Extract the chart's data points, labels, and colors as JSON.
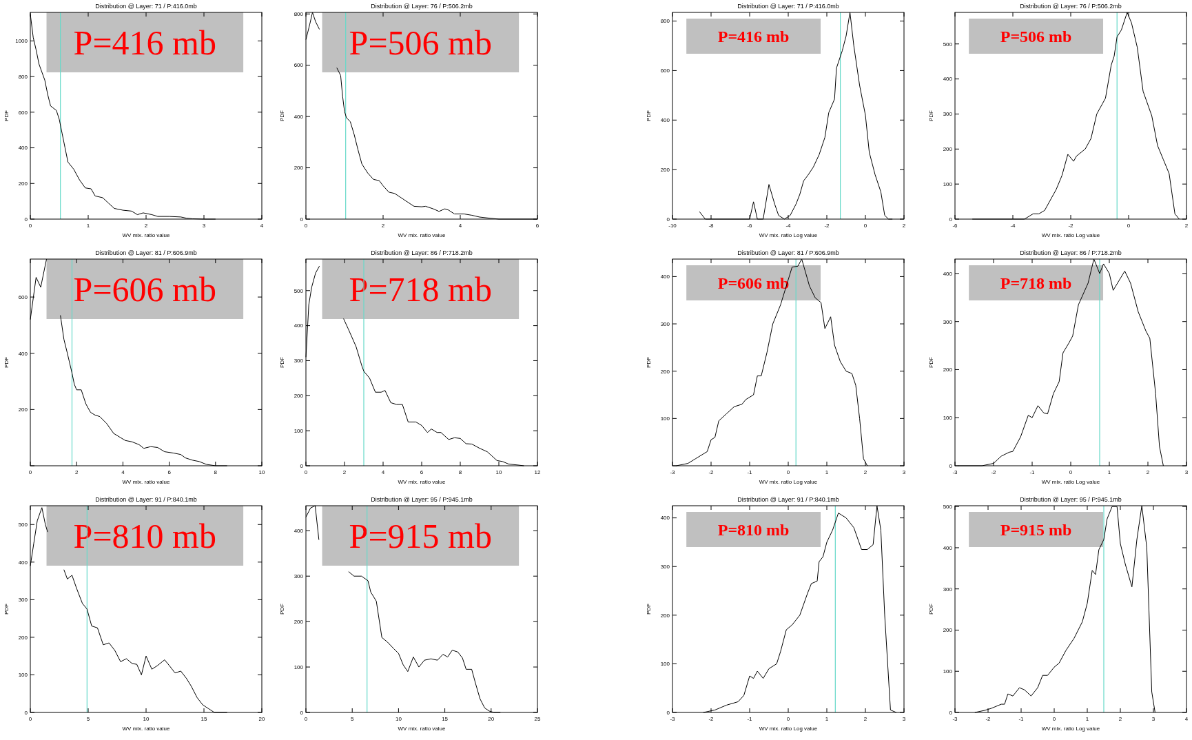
{
  "chart_data": [
    {
      "type": "line",
      "title": "Distribution @ Layer: 71 / P:416.0mb",
      "xlabel": "WV mix. ratio value",
      "ylabel": "PDF",
      "annotations": [
        "P=416 mb"
      ],
      "color": "#000000",
      "xlim": [
        0,
        4
      ],
      "xticks": [
        0,
        1,
        2,
        3,
        4
      ],
      "ylim": [
        0,
        1160
      ],
      "yticks": [
        0,
        200,
        400,
        600,
        800,
        1000
      ],
      "ref_lines": [
        {
          "axis": "x",
          "value": 0.52,
          "color": "#66d9c9"
        }
      ],
      "x": [
        0,
        0.05,
        0.1,
        0.15,
        0.25,
        0.3,
        0.35,
        0.45,
        0.5,
        0.55,
        0.6,
        0.65,
        0.75,
        0.85,
        0.95,
        1.05,
        1.12,
        1.25,
        1.35,
        1.45,
        1.6,
        1.75,
        1.85,
        1.95,
        2.1,
        2.2,
        2.4,
        2.6,
        2.7,
        2.8,
        3.0,
        3.2
      ],
      "values": [
        1150,
        1020,
        950,
        870,
        780,
        700,
        635,
        610,
        560,
        480,
        400,
        320,
        280,
        220,
        175,
        170,
        130,
        120,
        90,
        60,
        50,
        45,
        25,
        35,
        25,
        15,
        15,
        12,
        5,
        2,
        0,
        0
      ]
    },
    {
      "type": "line",
      "title": "Distribution @ Layer: 76 / P:506.2mb",
      "xlabel": "WV mix. ratio value",
      "ylabel": "PDF",
      "annotations": [
        "P=506 mb"
      ],
      "color": "#000000",
      "xlim": [
        0,
        6
      ],
      "xticks": [
        0,
        2,
        4,
        6
      ],
      "ylim": [
        0,
        806
      ],
      "yticks": [
        0,
        200,
        400,
        600,
        800
      ],
      "ref_lines": [
        {
          "axis": "x",
          "value": 1.03,
          "color": "#66d9c9"
        }
      ],
      "x": [
        0,
        0.1,
        0.17,
        0.25,
        0.35,
        0.55,
        0.8,
        0.9,
        0.95,
        1.0,
        1.05,
        1.15,
        1.25,
        1.35,
        1.45,
        1.6,
        1.75,
        1.9,
        2.0,
        2.15,
        2.3,
        2.45,
        2.6,
        2.8,
        3.0,
        3.1,
        3.3,
        3.45,
        3.6,
        3.7,
        3.85,
        4.1,
        4.3,
        4.5,
        4.8,
        5.0,
        5.5,
        6.0
      ],
      "values": [
        700,
        760,
        806,
        770,
        740,
        null,
        590,
        560,
        480,
        420,
        395,
        380,
        330,
        270,
        215,
        180,
        155,
        150,
        130,
        105,
        100,
        85,
        70,
        50,
        48,
        50,
        40,
        30,
        40,
        35,
        20,
        20,
        15,
        8,
        3,
        0,
        0,
        0
      ]
    },
    {
      "type": "line",
      "title": "Distribution @ Layer: 71 / P:416.0mb",
      "xlabel": "WV mix. ratio Log value",
      "ylabel": "PDF",
      "annotations": [
        "P=416 mb"
      ],
      "color": "#000000",
      "xlim": [
        -10,
        2
      ],
      "xticks": [
        -10,
        -8,
        -6,
        -4,
        -2,
        0,
        2
      ],
      "ylim": [
        0,
        835
      ],
      "yticks": [
        0,
        200,
        400,
        600,
        800
      ],
      "ref_lines": [
        {
          "axis": "x",
          "value": -1.3,
          "color": "#66d9c9"
        }
      ],
      "x": [
        -8.6,
        -8.3,
        -6,
        -5.8,
        -5.6,
        -5.3,
        -5.0,
        -4.7,
        -4.5,
        -4.2,
        -3.9,
        -3.6,
        -3.4,
        -3.2,
        -3.0,
        -2.7,
        -2.4,
        -2.1,
        -1.9,
        -1.6,
        -1.5,
        -1.2,
        -1.0,
        -0.8,
        -0.6,
        -0.3,
        0,
        0.2,
        0.5,
        0.8,
        1.0,
        1.2,
        1.4
      ],
      "values": [
        30,
        0,
        0,
        70,
        0,
        0,
        140,
        60,
        15,
        0,
        15,
        60,
        100,
        155,
        175,
        210,
        260,
        330,
        430,
        485,
        610,
        680,
        740,
        835,
        700,
        540,
        420,
        270,
        180,
        110,
        15,
        0,
        0
      ]
    },
    {
      "type": "line",
      "title": "Distribution @ Layer: 76 / P:506.2mb",
      "xlabel": "WV mix. ratio Log value",
      "ylabel": "PDF",
      "annotations": [
        "P=506 mb"
      ],
      "color": "#000000",
      "xlim": [
        -6,
        2
      ],
      "xticks": [
        -6,
        -4,
        -2,
        0,
        2
      ],
      "ylim": [
        0,
        590
      ],
      "yticks": [
        0,
        100,
        200,
        300,
        400,
        500
      ],
      "ref_lines": [
        {
          "axis": "x",
          "value": -0.4,
          "color": "#66d9c9"
        }
      ],
      "x": [
        -5.4,
        -3.6,
        -3.5,
        -3.3,
        -3.1,
        -2.9,
        -2.7,
        -2.5,
        -2.3,
        -2.1,
        -1.9,
        -1.8,
        -1.5,
        -1.3,
        -1.1,
        -0.9,
        -0.8,
        -0.6,
        -0.5,
        -0.4,
        -0.25,
        -0.05,
        0.1,
        0.3,
        0.5,
        0.8,
        1.0,
        1.2,
        1.4,
        1.6,
        1.75
      ],
      "values": [
        0,
        0,
        5,
        15,
        15,
        25,
        55,
        85,
        125,
        185,
        165,
        180,
        200,
        230,
        300,
        330,
        345,
        440,
        465,
        520,
        540,
        590,
        560,
        490,
        365,
        295,
        210,
        170,
        130,
        15,
        0
      ]
    },
    {
      "type": "line",
      "title": "Distribution @ Layer: 81 / P:606.9mb",
      "xlabel": "WV mix. ratio value",
      "ylabel": "PDF",
      "annotations": [
        "P=606 mb"
      ],
      "color": "#000000",
      "xlim": [
        0,
        10
      ],
      "xticks": [
        0,
        2,
        4,
        6,
        8,
        10
      ],
      "ylim": [
        0,
        735
      ],
      "yticks": [
        {
          "value": 0,
          "label": null
        },
        200,
        400,
        600
      ],
      "ref_lines": [
        {
          "axis": "x",
          "value": 1.8,
          "color": "#66d9c9"
        }
      ],
      "x": [
        0,
        0.25,
        0.45,
        0.7,
        1.0,
        1.3,
        1.45,
        1.6,
        1.8,
        1.9,
        2.0,
        2.2,
        2.4,
        2.6,
        2.8,
        3.0,
        3.3,
        3.6,
        3.9,
        4.1,
        4.4,
        4.7,
        4.9,
        5.2,
        5.5,
        5.8,
        6.2,
        6.5,
        6.7,
        7.0,
        7.3,
        7.6,
        8.0,
        8.5
      ],
      "values": [
        520,
        670,
        635,
        735,
        null,
        535,
        450,
        400,
        330,
        290,
        270,
        270,
        220,
        190,
        180,
        175,
        150,
        115,
        100,
        90,
        85,
        75,
        62,
        68,
        65,
        50,
        45,
        40,
        28,
        20,
        15,
        5,
        0,
        0
      ]
    },
    {
      "type": "line",
      "title": "Distribution @ Layer: 86 / P:718.2mb",
      "xlabel": "WV mix. ratio value",
      "ylabel": "PDF",
      "annotations": [
        "P=718 mb"
      ],
      "color": "#000000",
      "xlim": [
        0,
        12
      ],
      "xticks": [
        0,
        2,
        4,
        6,
        8,
        10,
        12
      ],
      "ylim": [
        0,
        590
      ],
      "yticks": [
        0,
        100,
        200,
        300,
        400,
        500
      ],
      "ref_lines": [
        {
          "axis": "x",
          "value": 3.0,
          "color": "#66d9c9"
        }
      ],
      "x": [
        0,
        0.15,
        0.3,
        0.5,
        0.7,
        1.2,
        1.95,
        2.2,
        2.6,
        2.9,
        3.0,
        3.3,
        3.6,
        3.9,
        4.1,
        4.4,
        4.7,
        5.0,
        5.3,
        5.7,
        6.0,
        6.3,
        6.5,
        6.8,
        7.0,
        7.4,
        7.7,
        8.0,
        8.3,
        8.6,
        9.0,
        9.4,
        9.6,
        9.9,
        10.2,
        10.5,
        11.0,
        11.3
      ],
      "values": [
        310,
        460,
        510,
        550,
        570,
        null,
        420,
        390,
        340,
        285,
        270,
        250,
        210,
        210,
        215,
        180,
        175,
        175,
        125,
        125,
        115,
        95,
        105,
        95,
        95,
        75,
        80,
        78,
        63,
        62,
        50,
        40,
        30,
        15,
        12,
        5,
        2,
        0
      ]
    },
    {
      "type": "line",
      "title": "Distribution @ Layer: 81 / P:606.9mb",
      "xlabel": "WV mix. ratio Log value",
      "ylabel": "PDF",
      "annotations": [
        "P=606 mb"
      ],
      "color": "#000000",
      "xlim": [
        -3,
        3
      ],
      "xticks": [
        -3,
        -2,
        -1,
        0,
        1,
        2,
        3
      ],
      "ylim": [
        0,
        437
      ],
      "yticks": [
        {
          "value": 0,
          "label": null
        },
        100,
        200,
        300,
        400
      ],
      "ref_lines": [
        {
          "axis": "x",
          "value": 0.2,
          "color": "#66d9c9"
        }
      ],
      "x": [
        -2.9,
        -2.6,
        -2.4,
        -2.2,
        -2.1,
        -2.0,
        -1.9,
        -1.8,
        -1.6,
        -1.4,
        -1.2,
        -1.1,
        -0.9,
        -0.8,
        -0.7,
        -0.55,
        -0.4,
        -0.2,
        0.1,
        0.25,
        0.35,
        0.55,
        0.7,
        0.85,
        0.95,
        1.1,
        1.2,
        1.35,
        1.5,
        1.65,
        1.75,
        1.85,
        1.95,
        2.05
      ],
      "values": [
        0,
        5,
        15,
        25,
        30,
        55,
        60,
        95,
        110,
        125,
        130,
        140,
        150,
        190,
        190,
        240,
        300,
        340,
        420,
        422,
        437,
        380,
        355,
        345,
        290,
        315,
        255,
        220,
        200,
        195,
        170,
        100,
        15,
        0
      ]
    },
    {
      "type": "line",
      "title": "Distribution @ Layer: 86 / P:718.2mb",
      "xlabel": "WV mix. ratio Log value",
      "ylabel": "PDF",
      "annotations": [
        "P=718 mb"
      ],
      "color": "#000000",
      "xlim": [
        -3,
        3
      ],
      "xticks": [
        -3,
        -2,
        -1,
        0,
        1,
        2,
        3
      ],
      "ylim": [
        0,
        430
      ],
      "yticks": [
        0,
        100,
        200,
        300,
        400
      ],
      "ref_lines": [
        {
          "axis": "x",
          "value": 0.75,
          "color": "#66d9c9"
        }
      ],
      "x": [
        -2.9,
        -2.3,
        -2.0,
        -1.8,
        -1.6,
        -1.5,
        -1.3,
        -1.1,
        -1.0,
        -0.85,
        -0.7,
        -0.6,
        -0.45,
        -0.3,
        -0.2,
        -0.05,
        0.05,
        0.2,
        0.45,
        0.6,
        0.75,
        0.85,
        1.0,
        1.1,
        1.4,
        1.55,
        1.75,
        1.95,
        2.05,
        2.2,
        2.3,
        2.4
      ],
      "values": [
        0,
        0,
        5,
        20,
        28,
        30,
        60,
        105,
        100,
        125,
        110,
        108,
        150,
        175,
        235,
        255,
        270,
        335,
        380,
        430,
        400,
        420,
        400,
        365,
        405,
        380,
        320,
        280,
        265,
        150,
        40,
        0
      ]
    },
    {
      "type": "line",
      "title": "Distribution @ Layer: 91 / P:840.1mb",
      "xlabel": "WV mix. ratio value",
      "ylabel": "PDF",
      "annotations": [
        "P=810 mb"
      ],
      "color": "#000000",
      "xlim": [
        0,
        20
      ],
      "xticks": [
        0,
        5,
        10,
        15,
        20
      ],
      "ylim": [
        0,
        550
      ],
      "yticks": [
        0,
        100,
        200,
        300,
        400,
        500
      ],
      "ref_lines": [
        {
          "axis": "x",
          "value": 4.9,
          "color": "#66d9c9"
        }
      ],
      "x": [
        0,
        0.3,
        0.6,
        1.0,
        1.3,
        1.5,
        2.2,
        2.9,
        3.2,
        3.6,
        4.0,
        4.5,
        4.9,
        5.3,
        5.8,
        6.3,
        6.8,
        7.3,
        7.8,
        8.3,
        8.8,
        9.2,
        9.6,
        10.0,
        10.5,
        11.0,
        11.6,
        12.0,
        12.5,
        13.0,
        13.5,
        13.9,
        14.4,
        14.9,
        15.4,
        15.9,
        17.0
      ],
      "values": [
        390,
        450,
        510,
        545,
        500,
        480,
        null,
        380,
        355,
        365,
        330,
        290,
        275,
        230,
        225,
        180,
        185,
        165,
        135,
        143,
        130,
        128,
        100,
        150,
        115,
        125,
        140,
        125,
        105,
        110,
        90,
        70,
        40,
        20,
        10,
        0,
        0
      ]
    },
    {
      "type": "line",
      "title": "Distribution @ Layer: 95 / P:945.1mb",
      "xlabel": "WV mix. ratio value",
      "ylabel": "PDF",
      "annotations": [
        "P=915 mb"
      ],
      "color": "#000000",
      "xlim": [
        0,
        25
      ],
      "xticks": [
        0,
        5,
        10,
        15,
        20,
        25
      ],
      "ylim": [
        0,
        455
      ],
      "yticks": [
        0,
        100,
        200,
        300,
        400
      ],
      "ref_lines": [
        {
          "axis": "x",
          "value": 6.6,
          "color": "#66d9c9"
        }
      ],
      "x": [
        0,
        0.5,
        1.0,
        1.4,
        3.0,
        4.6,
        5.2,
        6.0,
        6.7,
        7.0,
        7.6,
        8.2,
        8.8,
        9.5,
        10.0,
        10.5,
        11.0,
        11.6,
        12.2,
        12.8,
        13.5,
        14.2,
        14.8,
        15.3,
        15.8,
        16.4,
        16.9,
        17.3,
        17.9,
        18.3,
        18.8,
        19.3,
        19.8,
        20.3,
        21.0
      ],
      "values": [
        430,
        450,
        455,
        380,
        null,
        310,
        300,
        300,
        290,
        265,
        245,
        165,
        155,
        140,
        130,
        105,
        90,
        122,
        100,
        115,
        118,
        115,
        128,
        122,
        137,
        133,
        120,
        95,
        95,
        65,
        30,
        10,
        3,
        0,
        0
      ]
    },
    {
      "type": "line",
      "title": "Distribution @ Layer: 91 / P:840.1mb",
      "xlabel": "WV mix. ratio Log value",
      "ylabel": "PDF",
      "annotations": [
        "P=810 mb"
      ],
      "color": "#000000",
      "xlim": [
        -3,
        3
      ],
      "xticks": [
        -3,
        -2,
        -1,
        0,
        1,
        2,
        3
      ],
      "ylim": [
        0,
        425
      ],
      "yticks": [
        0,
        100,
        200,
        300,
        400
      ],
      "ref_lines": [
        {
          "axis": "x",
          "value": 1.22,
          "color": "#66d9c9"
        }
      ],
      "x": [
        -2.2,
        -1.9,
        -1.6,
        -1.3,
        -1.15,
        -1.0,
        -0.9,
        -0.8,
        -0.65,
        -0.5,
        -0.3,
        -0.2,
        -0.05,
        0.1,
        0.3,
        0.5,
        0.6,
        0.75,
        0.8,
        0.9,
        1.0,
        1.15,
        1.3,
        1.5,
        1.7,
        1.9,
        2.05,
        2.2,
        2.3,
        2.4,
        2.5,
        2.65,
        2.8
      ],
      "values": [
        0,
        5,
        15,
        22,
        35,
        75,
        70,
        85,
        70,
        90,
        100,
        125,
        170,
        180,
        200,
        245,
        265,
        270,
        310,
        320,
        350,
        375,
        410,
        400,
        380,
        335,
        335,
        345,
        425,
        375,
        200,
        5,
        0
      ]
    },
    {
      "type": "line",
      "title": "Distribution @ Layer: 95 / P:945.1mb",
      "xlabel": "WV mix. ratio Log value",
      "ylabel": "PDF",
      "annotations": [
        "P=915 mb"
      ],
      "color": "#000000",
      "xlim": [
        -3,
        4
      ],
      "xticks": [
        -3,
        -2,
        -1,
        0,
        1,
        2,
        3,
        4
      ],
      "ylim": [
        0,
        502
      ],
      "yticks": [
        0,
        100,
        200,
        300,
        400,
        500
      ],
      "ref_lines": [
        {
          "axis": "x",
          "value": 1.5,
          "color": "#66d9c9"
        }
      ],
      "x": [
        -2.4,
        -2.1,
        -1.9,
        -1.6,
        -1.5,
        -1.4,
        -1.25,
        -1.05,
        -0.9,
        -0.7,
        -0.5,
        -0.35,
        -0.2,
        0,
        0.15,
        0.35,
        0.6,
        0.85,
        1.0,
        1.15,
        1.25,
        1.35,
        1.5,
        1.6,
        1.75,
        1.9,
        2.0,
        2.15,
        2.35,
        2.5,
        2.65,
        2.8,
        2.95,
        3.05
      ],
      "values": [
        0,
        5,
        10,
        20,
        20,
        45,
        40,
        60,
        55,
        40,
        60,
        90,
        90,
        110,
        120,
        150,
        180,
        220,
        265,
        345,
        335,
        395,
        420,
        470,
        500,
        500,
        410,
        360,
        305,
        420,
        502,
        400,
        50,
        0
      ]
    }
  ]
}
